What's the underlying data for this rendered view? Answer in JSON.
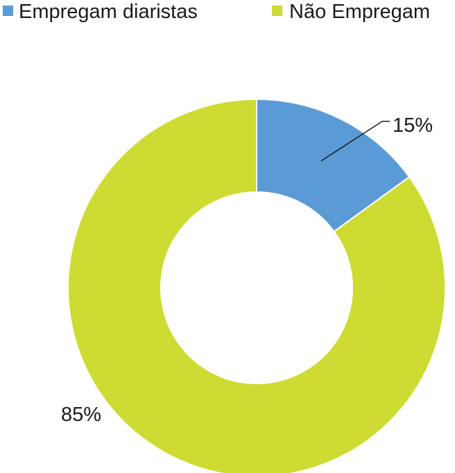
{
  "chart_data": {
    "type": "pie",
    "variant": "donut",
    "title": "",
    "legend_position": "top",
    "series": [
      {
        "name": "Empregam diaristas",
        "value": 15,
        "label": "15%",
        "color": "#5b9bd5"
      },
      {
        "name": "Não Empregam",
        "value": 85,
        "label": "85%",
        "color": "#cddb32"
      }
    ]
  }
}
